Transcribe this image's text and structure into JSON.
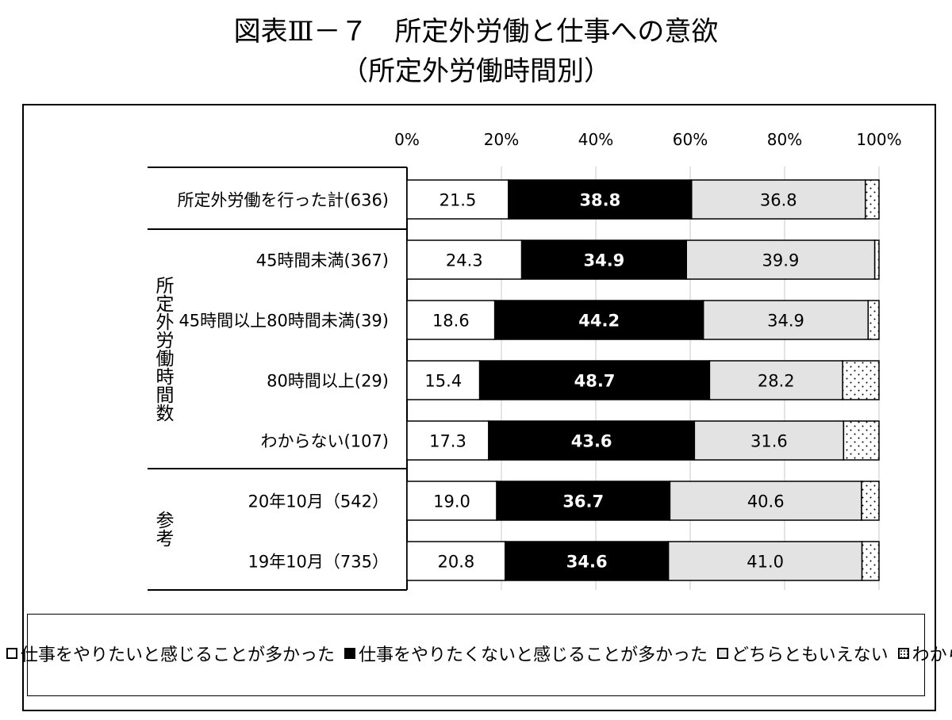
{
  "header": {
    "title": "図表Ⅲ－７　所定外労働と仕事への意欲",
    "subtitle": "（所定外労働時間別）"
  },
  "chart_data": {
    "type": "bar",
    "orientation": "horizontal",
    "stacked": "percent",
    "x_ticks": [
      "0%",
      "20%",
      "40%",
      "60%",
      "80%",
      "100%"
    ],
    "xlim": [
      0,
      100
    ],
    "grid": true,
    "legend_position": "bottom",
    "categories": [
      "所定外労働を行った計(636)",
      "45時間未満(367)",
      "45時間以上80時間未満(39)",
      "80時間以上(29)",
      "わからない(107)",
      "20年10月（542）",
      "19年10月（735）"
    ],
    "groups": [
      {
        "label": "所定外労働時間数",
        "rows": [
          1,
          2,
          3,
          4
        ]
      },
      {
        "label": "参考",
        "rows": [
          5,
          6
        ]
      }
    ],
    "series": [
      {
        "name": "仕事をやりたいと感じることが多かった",
        "color": "#ffffff",
        "values": [
          21.5,
          24.3,
          18.6,
          15.4,
          17.3,
          19.0,
          20.8
        ]
      },
      {
        "name": "仕事をやりたくないと感じることが多かった",
        "color": "#000000",
        "values": [
          38.8,
          34.9,
          44.2,
          48.7,
          43.6,
          36.7,
          34.6
        ]
      },
      {
        "name": "どちらともいえない",
        "color": "#e3e3e3",
        "values": [
          36.8,
          39.9,
          34.9,
          28.2,
          31.6,
          40.6,
          41.0
        ]
      },
      {
        "name": "わからない",
        "color": "dotted",
        "values": [
          2.9,
          0.9,
          2.3,
          7.7,
          7.5,
          3.7,
          3.6
        ]
      }
    ],
    "data_labels": [
      [
        "21.5",
        "38.8",
        "36.8"
      ],
      [
        "24.3",
        "34.9",
        "39.9"
      ],
      [
        "18.6",
        "44.2",
        "34.9"
      ],
      [
        "15.4",
        "48.7",
        "28.2"
      ],
      [
        "17.3",
        "43.6",
        "31.6"
      ],
      [
        "19.0",
        "36.7",
        "40.6"
      ],
      [
        "20.8",
        "34.6",
        "41.0"
      ]
    ]
  }
}
